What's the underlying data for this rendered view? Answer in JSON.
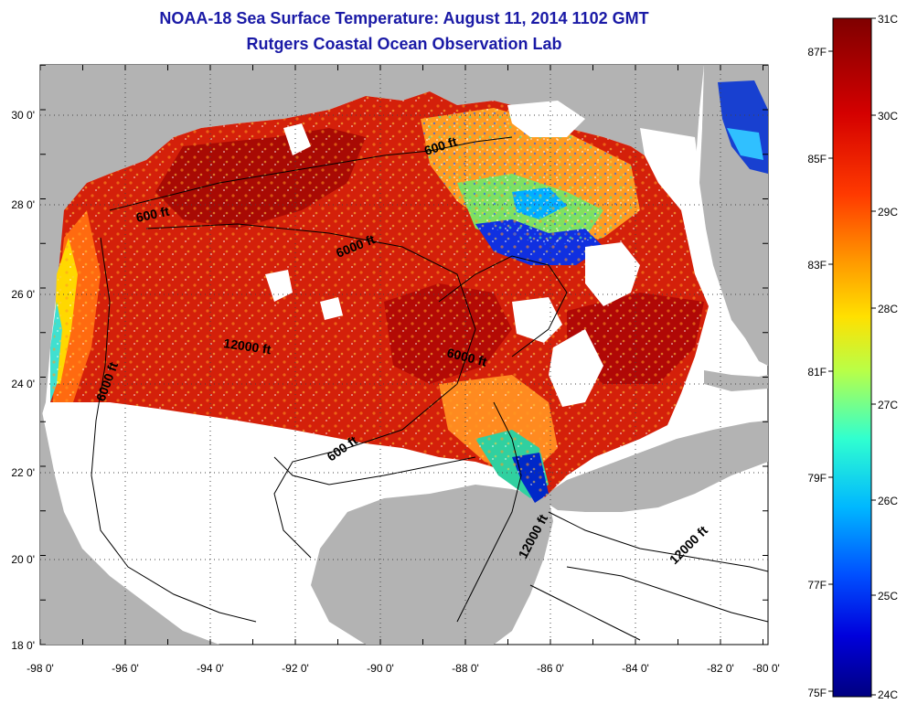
{
  "title": {
    "line1": "NOAA-18 Sea Surface Temperature:  August 11, 2014 1102 GMT",
    "line2": "Rutgers Coastal Ocean Observation Lab"
  },
  "map": {
    "lon_ticks": [
      "-98 0'",
      "-96 0'",
      "-94 0'",
      "-92 0'",
      "-90 0'",
      "-88 0'",
      "-86 0'",
      "-84 0'",
      "-82 0'",
      "-80 0'"
    ],
    "lat_ticks": [
      "18 0'",
      "20 0'",
      "22 0'",
      "24 0'",
      "26 0'",
      "28 0'",
      "30 0'"
    ],
    "lon_range": [
      -98,
      -80
    ],
    "lat_range": [
      18,
      31
    ],
    "colors": {
      "land": "#b3b3b3",
      "no_data": "#ffffff"
    },
    "contour_labels": [
      "600 ft",
      "600 ft",
      "6000 ft",
      "12000 ft",
      "6000 ft",
      "6000 ft",
      "600 ft",
      "12000 ft",
      "12000 ft"
    ]
  },
  "colorbar": {
    "range_c": [
      24,
      31
    ],
    "range_f": [
      75,
      88
    ],
    "celsius_labels": [
      "31C",
      "30C",
      "29C",
      "28C",
      "27C",
      "26C",
      "25C",
      "24C"
    ],
    "fahrenheit_labels": [
      "87F",
      "85F",
      "83F",
      "81F",
      "79F",
      "77F",
      "75F"
    ]
  }
}
